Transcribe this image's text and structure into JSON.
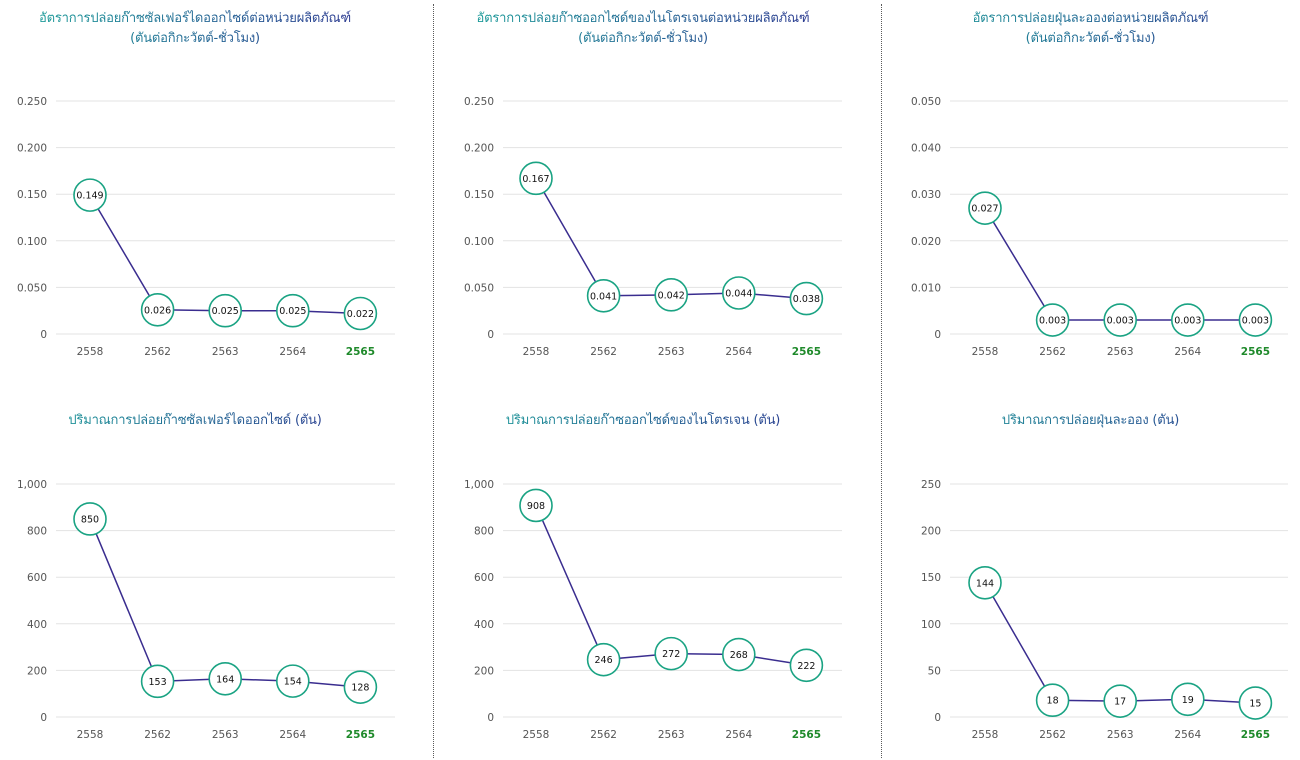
{
  "colors": {
    "title_gradient_start": "#1aa79a",
    "title_gradient_end": "#2c2d8f",
    "line": "#3a2d8f",
    "marker_stroke": "#1aa383",
    "marker_fill": "#ffffff",
    "grid": "#e3e3e3",
    "tick_text": "#555555",
    "highlight_tick": "#1f8a2b",
    "value_text": "#111111",
    "divider": "#5a5a5a"
  },
  "chart_data": [
    {
      "type": "line",
      "title_line1": "อัตราการปล่อยก๊าซซัลเฟอร์ไดออกไซด์ต่อหน่วยผลิตภัณฑ์",
      "title_line2": "(ตันต่อกิกะวัตต์-ชั่วโมง)",
      "categories": [
        "2558",
        "2562",
        "2563",
        "2564",
        "2565"
      ],
      "highlight_category": "2565",
      "values": [
        0.149,
        0.026,
        0.025,
        0.025,
        0.022
      ],
      "value_labels": [
        "0.149",
        "0.026",
        "0.025",
        "0.025",
        "0.022"
      ],
      "ylim": [
        0,
        0.25
      ],
      "yticks": [
        0,
        0.05,
        0.1,
        0.15,
        0.2,
        0.25
      ],
      "ytick_labels": [
        "0",
        "0.050",
        "0.100",
        "0.150",
        "0.200",
        "0.250"
      ],
      "grid": true
    },
    {
      "type": "line",
      "title_line1": "อัตราการปล่อยก๊าซออกไซด์ของไนโตรเจนต่อหน่วยผลิตภัณฑ์",
      "title_line2": "(ตันต่อกิกะวัตต์-ชั่วโมง)",
      "categories": [
        "2558",
        "2562",
        "2563",
        "2564",
        "2565"
      ],
      "highlight_category": "2565",
      "values": [
        0.167,
        0.041,
        0.042,
        0.044,
        0.038
      ],
      "value_labels": [
        "0.167",
        "0.041",
        "0.042",
        "0.044",
        "0.038"
      ],
      "ylim": [
        0,
        0.25
      ],
      "yticks": [
        0,
        0.05,
        0.1,
        0.15,
        0.2,
        0.25
      ],
      "ytick_labels": [
        "0",
        "0.050",
        "0.100",
        "0.150",
        "0.200",
        "0.250"
      ],
      "grid": true
    },
    {
      "type": "line",
      "title_line1": "อัตราการปล่อยฝุ่นละอองต่อหน่วยผลิตภัณฑ์",
      "title_line2": "(ตันต่อกิกะวัตต์-ชั่วโมง)",
      "categories": [
        "2558",
        "2562",
        "2563",
        "2564",
        "2565"
      ],
      "highlight_category": "2565",
      "values": [
        0.027,
        0.003,
        0.003,
        0.003,
        0.003
      ],
      "value_labels": [
        "0.027",
        "0.003",
        "0.003",
        "0.003",
        "0.003"
      ],
      "ylim": [
        0,
        0.05
      ],
      "yticks": [
        0,
        0.01,
        0.02,
        0.03,
        0.04,
        0.05
      ],
      "ytick_labels": [
        "0",
        "0.010",
        "0.020",
        "0.030",
        "0.040",
        "0.050"
      ],
      "grid": true
    },
    {
      "type": "line",
      "title_line1": "ปริมาณการปล่อยก๊าซซัลเฟอร์ไดออกไซด์ (ตัน)",
      "title_line2": "",
      "categories": [
        "2558",
        "2562",
        "2563",
        "2564",
        "2565"
      ],
      "highlight_category": "2565",
      "values": [
        850,
        153,
        164,
        154,
        128
      ],
      "value_labels": [
        "850",
        "153",
        "164",
        "154",
        "128"
      ],
      "ylim": [
        0,
        1000
      ],
      "yticks": [
        0,
        200,
        400,
        600,
        800,
        1000
      ],
      "ytick_labels": [
        "0",
        "200",
        "400",
        "600",
        "800",
        "1,000"
      ],
      "grid": true
    },
    {
      "type": "line",
      "title_line1": "ปริมาณการปล่อยก๊าซออกไซด์ของไนโตรเจน (ตัน)",
      "title_line2": "",
      "categories": [
        "2558",
        "2562",
        "2563",
        "2564",
        "2565"
      ],
      "highlight_category": "2565",
      "values": [
        908,
        246,
        272,
        268,
        222
      ],
      "value_labels": [
        "908",
        "246",
        "272",
        "268",
        "222"
      ],
      "ylim": [
        0,
        1000
      ],
      "yticks": [
        0,
        200,
        400,
        600,
        800,
        1000
      ],
      "ytick_labels": [
        "0",
        "200",
        "400",
        "600",
        "800",
        "1,000"
      ],
      "grid": true
    },
    {
      "type": "line",
      "title_line1": "ปริมาณการปล่อยฝุ่นละออง (ตัน)",
      "title_line2": "",
      "categories": [
        "2558",
        "2562",
        "2563",
        "2564",
        "2565"
      ],
      "highlight_category": "2565",
      "values": [
        144,
        18,
        17,
        19,
        15
      ],
      "value_labels": [
        "144",
        "18",
        "17",
        "19",
        "15"
      ],
      "ylim": [
        0,
        250
      ],
      "yticks": [
        0,
        50,
        100,
        150,
        200,
        250
      ],
      "ytick_labels": [
        "0",
        "50",
        "100",
        "150",
        "200",
        "250"
      ],
      "grid": true
    }
  ]
}
